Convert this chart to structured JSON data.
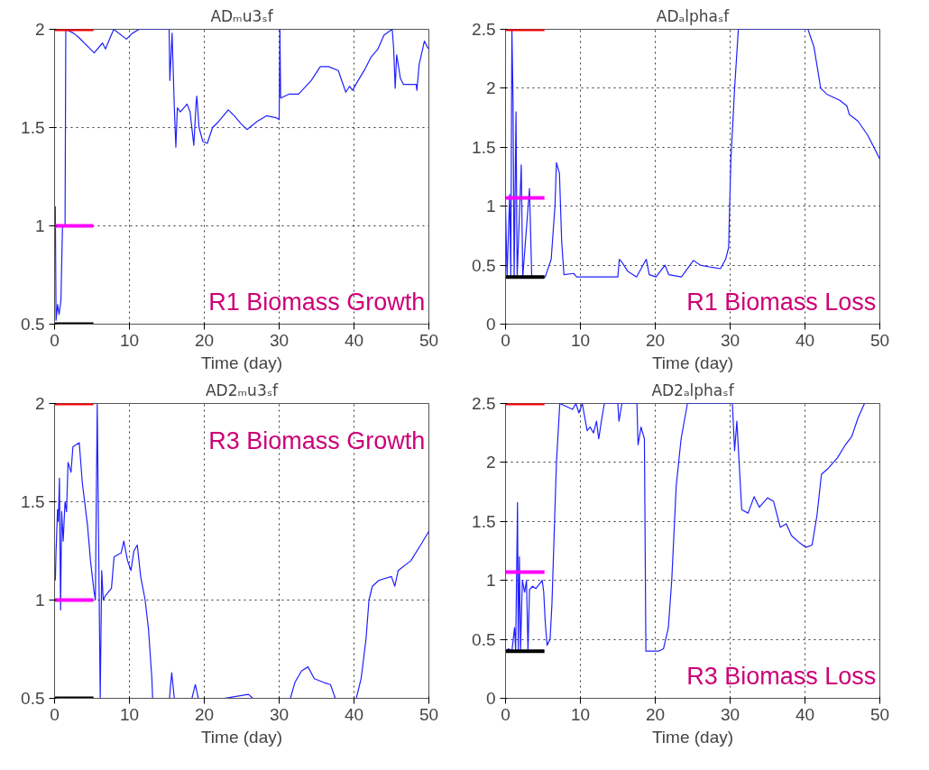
{
  "chart_data": [
    {
      "type": "line",
      "title": "ADₘu3ₛf",
      "xlabel": "Time (day)",
      "annotations": [
        "R1 Biomass Growth"
      ],
      "xlim": [
        0,
        50
      ],
      "xticks": [
        0,
        10,
        20,
        30,
        40,
        50
      ],
      "ylim": [
        0.5,
        2
      ],
      "yticks": [
        0.5,
        1,
        1.5,
        2
      ],
      "grid": true,
      "series": [
        {
          "color": "#2020ff",
          "x": [
            0.1,
            0.2,
            0.4,
            0.6,
            0.85,
            1.06,
            1.28,
            1.4,
            1.5,
            2.55,
            3.2,
            5.3,
            6.4,
            6.8,
            7.9,
            9.6,
            10.4,
            11.3,
            15.3,
            15.4,
            15.7,
            16.0,
            16.2,
            16.4,
            16.8,
            17.7,
            18.1,
            18.6,
            18.9,
            19.0,
            19.3,
            19.8,
            20.4,
            21.1,
            21.9,
            23.2,
            24.0,
            24.9,
            25.7,
            27.0,
            28.3,
            29.6,
            30.0,
            30.1,
            30.2,
            31.3,
            32.6,
            34.3,
            35.5,
            36.6,
            37.9,
            38.9,
            39.4,
            39.8,
            40.4,
            41.5,
            42.3,
            43.2,
            44.0,
            44.7,
            45.1,
            45.3,
            45.5,
            45.7,
            46.2,
            46.6,
            48.3,
            48.4,
            48.7,
            49.4,
            49.8,
            50
          ],
          "values": [
            1.1,
            0.52,
            0.6,
            0.55,
            0.62,
            1.0,
            1.0,
            1.0,
            2.0,
            1.98,
            1.96,
            1.88,
            1.93,
            1.9,
            2.0,
            1.95,
            1.98,
            2.0,
            2.0,
            1.74,
            1.98,
            1.6,
            1.4,
            1.6,
            1.58,
            1.62,
            1.58,
            1.41,
            1.62,
            1.66,
            1.5,
            1.43,
            1.42,
            1.5,
            1.53,
            1.59,
            1.56,
            1.52,
            1.49,
            1.53,
            1.56,
            1.55,
            1.54,
            2.0,
            1.65,
            1.67,
            1.67,
            1.74,
            1.81,
            1.81,
            1.79,
            1.68,
            1.71,
            1.69,
            1.73,
            1.8,
            1.86,
            1.9,
            1.97,
            1.99,
            2.0,
            1.9,
            1.7,
            1.87,
            1.75,
            1.72,
            1.72,
            1.69,
            1.82,
            1.94,
            1.91,
            1.9
          ]
        },
        {
          "color": "#ff0000",
          "x": [
            0,
            5.2
          ],
          "values": [
            2,
            2
          ]
        },
        {
          "color": "#ff00ff",
          "x": [
            0,
            5.2
          ],
          "values": [
            1,
            1
          ]
        },
        {
          "color": "#000000",
          "x": [
            0,
            5.2
          ],
          "values": [
            0.5,
            0.5
          ]
        }
      ]
    },
    {
      "type": "line",
      "title": "ADₐlphaₛf",
      "xlabel": "Time (day)",
      "annotations": [
        "R1 Biomass Loss"
      ],
      "xlim": [
        0,
        50
      ],
      "xticks": [
        0,
        10,
        20,
        30,
        40,
        50
      ],
      "ylim": [
        0,
        2.5
      ],
      "yticks": [
        0,
        0.5,
        1,
        1.5,
        2,
        2.5
      ],
      "grid": true,
      "series": [
        {
          "color": "#2020ff",
          "x": [
            0,
            0.2,
            0.55,
            0.7,
            0.85,
            1.0,
            1.15,
            1.4,
            1.55,
            2.1,
            2.3,
            3.2,
            3.5,
            5.3,
            6.1,
            6.6,
            6.8,
            7.2,
            7.5,
            7.8,
            9.1,
            9.5,
            15.0,
            15.2,
            15.6,
            16.3,
            17.5,
            18.8,
            19.2,
            20.1,
            21.3,
            21.8,
            23.5,
            25.1,
            26.0,
            27.7,
            28.7,
            29.4,
            29.8,
            30.1,
            30.4,
            30.6,
            31.1,
            40.4,
            41.2,
            42.1,
            42.9,
            44.6,
            45.6,
            45.9,
            47.1,
            48.4,
            50
          ],
          "values": [
            1.0,
            0.4,
            1.1,
            0.4,
            2.5,
            1.9,
            0.4,
            1.8,
            0.4,
            1.35,
            0.4,
            1.15,
            0.4,
            0.4,
            0.55,
            1.0,
            1.37,
            1.28,
            0.7,
            0.42,
            0.43,
            0.4,
            0.4,
            0.55,
            0.52,
            0.45,
            0.4,
            0.55,
            0.42,
            0.4,
            0.5,
            0.42,
            0.4,
            0.54,
            0.5,
            0.48,
            0.47,
            0.55,
            0.65,
            1.4,
            1.75,
            2.0,
            2.5,
            2.5,
            2.35,
            2.0,
            1.95,
            1.9,
            1.85,
            1.78,
            1.72,
            1.6,
            1.4
          ]
        },
        {
          "color": "#ff0000",
          "x": [
            0,
            5.2
          ],
          "values": [
            2.5,
            2.5
          ]
        },
        {
          "color": "#ff00ff",
          "x": [
            0,
            5.2
          ],
          "values": [
            1.07,
            1.07
          ]
        },
        {
          "color": "#000000",
          "x": [
            0,
            5.2
          ],
          "values": [
            0.4,
            0.4
          ]
        }
      ]
    },
    {
      "type": "line",
      "title": "AD2ₘu3ₛf",
      "xlabel": "Time (day)",
      "annotations": [
        "R3 Biomass Growth"
      ],
      "xlim": [
        0,
        50
      ],
      "xticks": [
        0,
        10,
        20,
        30,
        40,
        50
      ],
      "ylim": [
        0.5,
        2
      ],
      "yticks": [
        0.5,
        1,
        1.5,
        2
      ],
      "grid": true,
      "series": [
        {
          "color": "#2020ff",
          "x": [
            0.1,
            0.2,
            0.4,
            0.5,
            0.65,
            0.8,
            0.95,
            1.15,
            1.4,
            1.6,
            1.8,
            2.2,
            2.45,
            3.3,
            3.7,
            4.4,
            4.8,
            5.25,
            5.45,
            5.7,
            5.8,
            6.1,
            6.3,
            6.5,
            6.75,
            7.6,
            7.95,
            8.9,
            9.25,
            9.75,
            10.2,
            10.6,
            11.05,
            11.5,
            12.1,
            12.55,
            13.0,
            13.1,
            15.35,
            15.65,
            16.0,
            18.35,
            18.8,
            19.2,
            22.65,
            25.9,
            26.5,
            31.5,
            32.1,
            33.0,
            33.85,
            34.7,
            36.0,
            36.85,
            37.5,
            40.3,
            40.95,
            41.6,
            42.0,
            42.45,
            43.3,
            45.0,
            45.45,
            45.9,
            47.6,
            48.9,
            50
          ],
          "values": [
            1.1,
            1.25,
            1.46,
            1.4,
            1.62,
            0.95,
            1.45,
            1.3,
            1.5,
            1.45,
            1.7,
            1.65,
            1.78,
            1.8,
            1.6,
            1.38,
            1.2,
            1.05,
            1.0,
            2.0,
            1.61,
            0.5,
            1.15,
            1.0,
            1.02,
            1.06,
            1.22,
            1.24,
            1.3,
            1.2,
            1.15,
            1.25,
            1.28,
            1.12,
            1.0,
            0.85,
            0.6,
            0.5,
            0.5,
            0.63,
            0.5,
            0.5,
            0.57,
            0.5,
            0.5,
            0.52,
            0.5,
            0.5,
            0.58,
            0.64,
            0.66,
            0.6,
            0.58,
            0.57,
            0.5,
            0.5,
            0.6,
            0.8,
            1.0,
            1.07,
            1.1,
            1.12,
            1.07,
            1.15,
            1.2,
            1.28,
            1.35
          ]
        },
        {
          "color": "#ff0000",
          "x": [
            0,
            5.2
          ],
          "values": [
            2,
            2
          ]
        },
        {
          "color": "#ff00ff",
          "x": [
            0,
            5.2
          ],
          "values": [
            1,
            1
          ]
        },
        {
          "color": "#000000",
          "x": [
            0,
            5.2
          ],
          "values": [
            0.5,
            0.5
          ]
        }
      ]
    },
    {
      "type": "line",
      "title": "AD2ₐlphaₛf",
      "xlabel": "Time (day)",
      "annotations": [
        "R3 Biomass Loss"
      ],
      "xlim": [
        0,
        50
      ],
      "xticks": [
        0,
        10,
        20,
        30,
        40,
        50
      ],
      "ylim": [
        0,
        2.5
      ],
      "yticks": [
        0,
        0.5,
        1,
        1.5,
        2,
        2.5
      ],
      "grid": true,
      "series": [
        {
          "color": "#2020ff",
          "x": [
            0,
            0.4,
            0.85,
            1.2,
            1.35,
            1.6,
            1.7,
            1.85,
            2.0,
            2.25,
            2.55,
            2.8,
            3.0,
            3.2,
            3.6,
            4.05,
            4.9,
            5.1,
            5.3,
            5.55,
            5.95,
            6.2,
            6.5,
            6.8,
            7.25,
            8.95,
            9.4,
            9.8,
            10.25,
            10.9,
            11.3,
            11.75,
            12.15,
            12.45,
            12.8,
            13.2,
            15.0,
            15.15,
            15.55,
            17.55,
            17.7,
            18.1,
            18.55,
            18.75,
            20.45,
            21.1,
            21.75,
            22.2,
            22.8,
            23.45,
            24.3,
            30.3,
            30.6,
            30.9,
            31.55,
            32.4,
            33.2,
            33.9,
            35.0,
            35.8,
            36.7,
            37.5,
            38.2,
            39.25,
            40.1,
            40.95,
            41.6,
            42.2,
            43.1,
            44.35,
            45.4,
            46.25,
            47.1,
            47.95
          ],
          "values": [
            0.4,
            0.42,
            0.4,
            0.6,
            0.4,
            1.66,
            0.4,
            1.2,
            0.4,
            1.0,
            0.9,
            1.0,
            0.4,
            0.92,
            0.95,
            0.93,
            1.0,
            0.9,
            0.65,
            0.45,
            0.5,
            0.8,
            1.4,
            2.0,
            2.5,
            2.45,
            2.5,
            2.42,
            2.5,
            2.27,
            2.3,
            2.25,
            2.35,
            2.2,
            2.35,
            2.5,
            2.5,
            2.35,
            2.5,
            2.5,
            2.15,
            2.3,
            2.2,
            0.4,
            0.4,
            0.42,
            0.6,
            1.0,
            1.8,
            2.2,
            2.5,
            2.5,
            2.1,
            2.35,
            1.6,
            1.57,
            1.71,
            1.62,
            1.7,
            1.67,
            1.45,
            1.48,
            1.38,
            1.32,
            1.28,
            1.3,
            1.55,
            1.9,
            1.95,
            2.04,
            2.15,
            2.22,
            2.38,
            2.5
          ]
        },
        {
          "color": "#ff0000",
          "x": [
            0,
            5.2
          ],
          "values": [
            2.5,
            2.5
          ]
        },
        {
          "color": "#ff00ff",
          "x": [
            0,
            5.2
          ],
          "values": [
            1.07,
            1.07
          ]
        },
        {
          "color": "#000000",
          "x": [
            0,
            5.2
          ],
          "values": [
            0.4,
            0.4
          ]
        }
      ]
    }
  ]
}
